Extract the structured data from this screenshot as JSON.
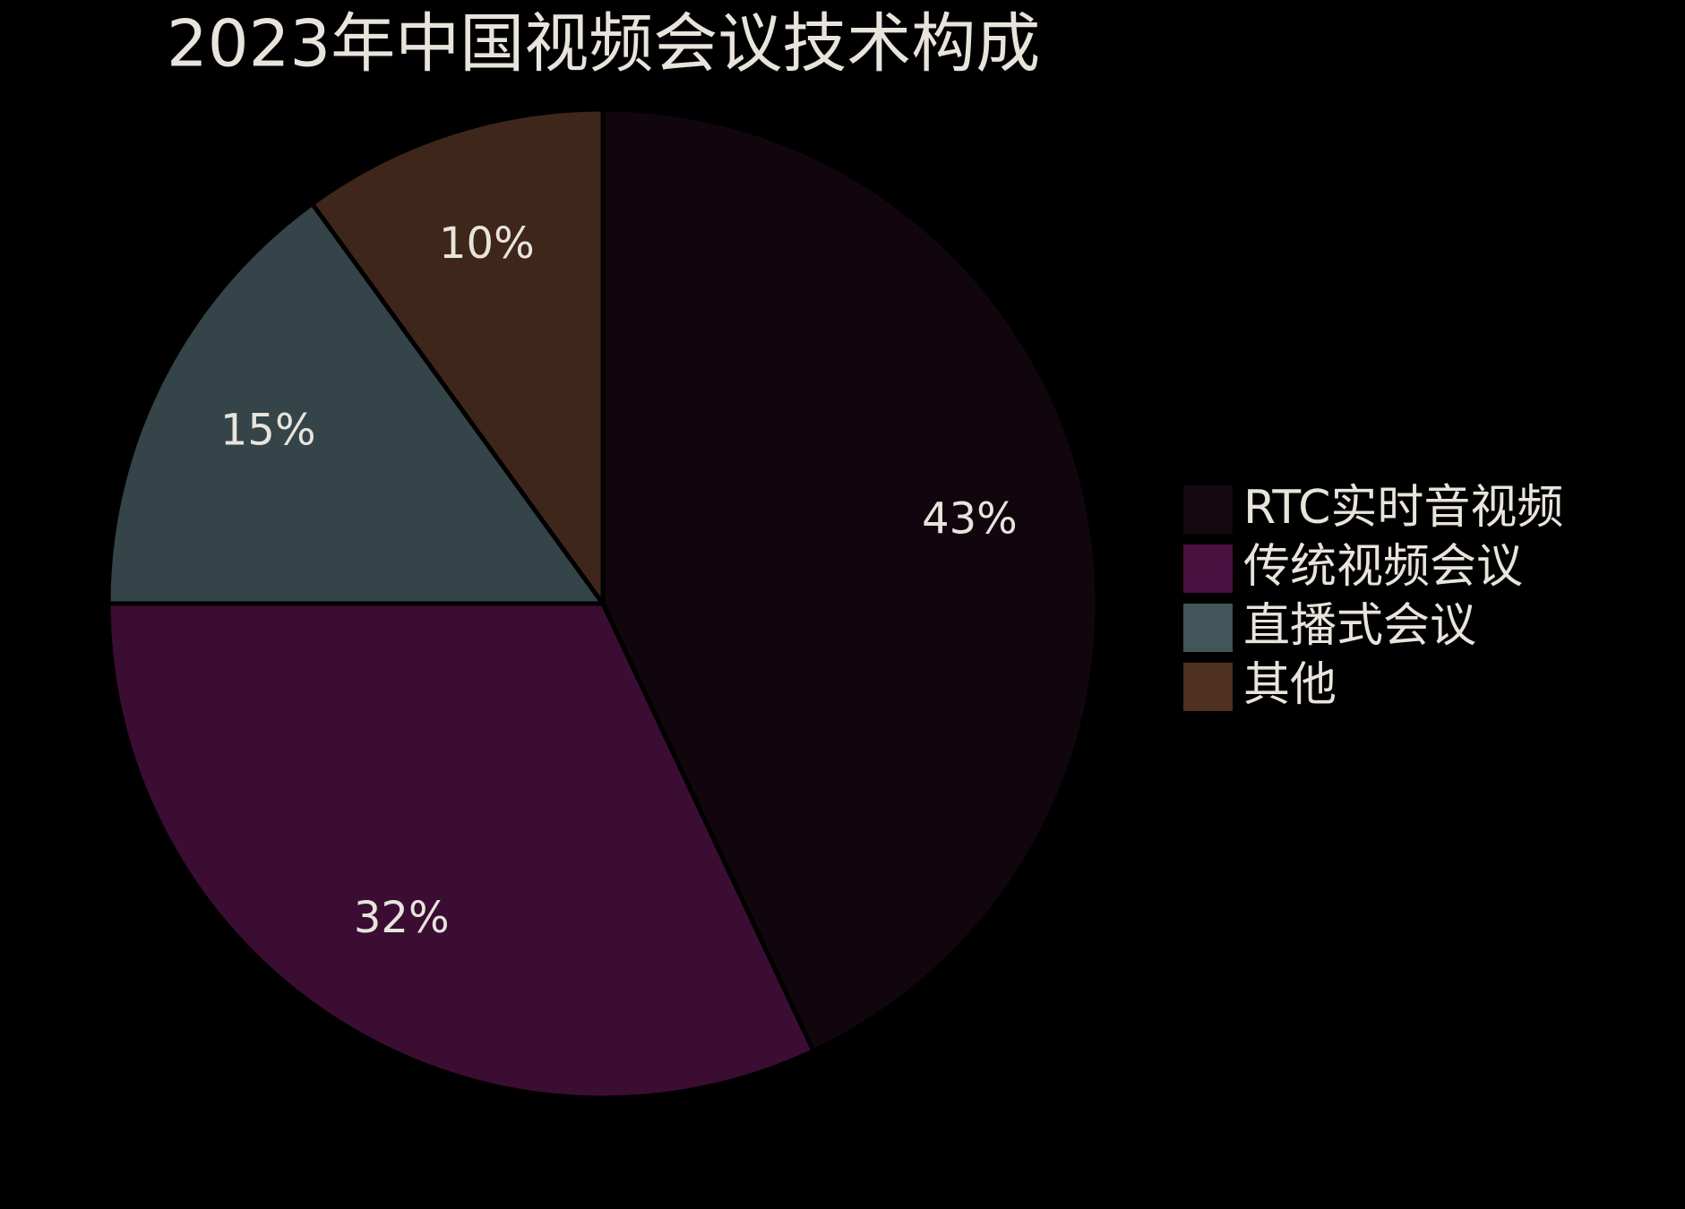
{
  "chart_data": {
    "type": "pie",
    "title": "2023年中国视频会议技术构成",
    "categories": [
      "RTC实时音视频",
      "传统视频会议",
      "直播式会议",
      "其他"
    ],
    "values": [
      43,
      32,
      15,
      10
    ],
    "value_labels": [
      "43%",
      "32%",
      "15%",
      "10%"
    ],
    "colors": [
      "#150810",
      "#4a1040",
      "#41555a",
      "#4e3120"
    ],
    "legend": "right"
  }
}
